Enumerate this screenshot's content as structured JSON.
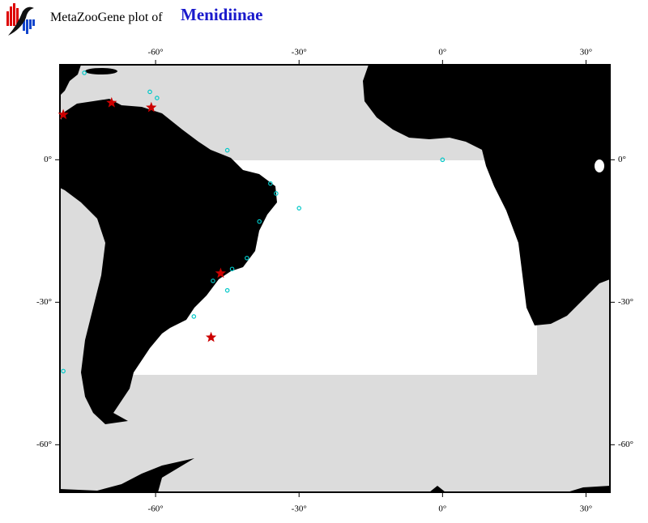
{
  "header": {
    "prefix": "MetaZooGene plot of",
    "taxon": "Menidiinae"
  },
  "chart_data": {
    "type": "map",
    "xlim": [
      -80,
      35
    ],
    "ylim": [
      -70,
      20
    ],
    "xticks": [
      {
        "value": -60,
        "label": "-60°"
      },
      {
        "value": -30,
        "label": "-30°"
      },
      {
        "value": 0,
        "label": "0°"
      },
      {
        "value": 30,
        "label": "30°"
      }
    ],
    "yticks": [
      {
        "value": 0,
        "label": "0°"
      },
      {
        "value": -30,
        "label": "-30°"
      },
      {
        "value": -60,
        "label": "-60°"
      }
    ],
    "series": [
      {
        "symbol": "star",
        "color": "#cc0000",
        "lon": [
          -79.3,
          -69.2,
          -60.9,
          -46.4,
          -48.4
        ],
        "lat": [
          9.5,
          12,
          11,
          -23.9,
          -37.4
        ]
      },
      {
        "symbol": "circle",
        "color": "#00c8c8",
        "lon": [
          -74.9,
          -61.2,
          -59.7,
          -45,
          0,
          -30,
          -45,
          -79.3,
          -34.8,
          -38.3,
          -40.9,
          -44,
          -48,
          -52,
          -36
        ],
        "lat": [
          18.3,
          14.3,
          13,
          2,
          0,
          -10.2,
          -27.5,
          -44.5,
          -7.1,
          -13,
          -20.7,
          -23,
          -25.5,
          -33,
          -5
        ]
      }
    ]
  }
}
